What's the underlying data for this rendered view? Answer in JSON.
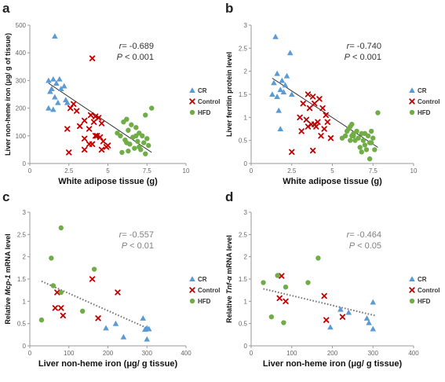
{
  "colors": {
    "CR": "#5b9bd5",
    "Control": "#c00000",
    "HFD": "#70ad47",
    "trend": "#222222",
    "trend_dotted": "#777777"
  },
  "chart_data": [
    {
      "type": "scatter",
      "letter": "a",
      "xlabel": "White adipose tissue (g)",
      "ylabel": "Liver non-heme iron (μg/ g of tissue)",
      "xlim": [
        0,
        10
      ],
      "ylim": [
        0,
        500
      ],
      "xticks": [
        "0",
        "2.5",
        "5",
        "7.5",
        "10"
      ],
      "yticks": [
        "0",
        "100",
        "200",
        "300",
        "400",
        "500"
      ],
      "stats": {
        "r": "-0.689",
        "p": "< 0.001"
      },
      "trend": {
        "x": [
          1.2,
          7.8
        ],
        "y": [
          290,
          40
        ],
        "style": "solid"
      },
      "series": [
        {
          "name": "CR",
          "marker": "triangle",
          "x": [
            1.6,
            1.2,
            1.4,
            1.5,
            1.9,
            2.0,
            1.7,
            2.2,
            1.3,
            1.6,
            2.3,
            1.2,
            1.8,
            2.4,
            1.5
          ],
          "y": [
            460,
            300,
            270,
            305,
            305,
            270,
            290,
            280,
            260,
            240,
            230,
            200,
            220,
            220,
            195
          ]
        },
        {
          "name": "Control",
          "marker": "x",
          "x": [
            4.0,
            2.8,
            3.0,
            3.5,
            2.6,
            3.9,
            4.2,
            4.4,
            4.1,
            3.8,
            4.6,
            2.4,
            3.2,
            4.3,
            5.0,
            3.5,
            4.5,
            3.8,
            4.7,
            4.9,
            4.0,
            4.6,
            2.5,
            3.5,
            4.2
          ],
          "y": [
            380,
            215,
            190,
            155,
            200,
            175,
            170,
            165,
            150,
            125,
            145,
            125,
            135,
            100,
            65,
            90,
            95,
            70,
            80,
            60,
            70,
            50,
            40,
            50,
            100
          ]
        },
        {
          "name": "HFD",
          "marker": "circle",
          "x": [
            7.8,
            6.2,
            7.4,
            6.0,
            6.5,
            6.8,
            7.0,
            6.3,
            7.2,
            6.6,
            7.5,
            5.8,
            6.1,
            6.9,
            7.3,
            6.4,
            7.0,
            5.6,
            6.2,
            7.6,
            6.7,
            7.1,
            5.9,
            6.3,
            7.4,
            6.8
          ],
          "y": [
            200,
            160,
            175,
            150,
            140,
            130,
            110,
            120,
            100,
            95,
            90,
            100,
            85,
            80,
            75,
            70,
            60,
            110,
            75,
            65,
            55,
            50,
            40,
            45,
            35,
            100
          ]
        }
      ]
    },
    {
      "type": "scatter",
      "letter": "b",
      "xlabel": "White adipose tissue (g)",
      "ylabel": "Liver ferritin protein level",
      "xlim": [
        0,
        10
      ],
      "ylim": [
        0,
        3
      ],
      "xticks": [
        "0",
        "2.5",
        "5",
        "7.5",
        "10"
      ],
      "yticks": [
        "0",
        "0.5",
        "1",
        "1.5",
        "2",
        "2.5",
        "3"
      ],
      "stats": {
        "r": "-0.740",
        "p": "< 0.001"
      },
      "trend": {
        "x": [
          1.3,
          7.8
        ],
        "y": [
          1.85,
          0.35
        ],
        "style": "solid"
      },
      "series": [
        {
          "name": "CR",
          "marker": "triangle",
          "x": [
            1.5,
            2.4,
            1.6,
            2.2,
            1.9,
            1.4,
            2.1,
            1.8,
            2.0,
            1.3,
            2.5,
            1.6,
            1.7,
            1.8
          ],
          "y": [
            2.75,
            2.4,
            1.95,
            1.9,
            1.8,
            1.75,
            1.7,
            1.6,
            1.55,
            1.5,
            1.5,
            1.45,
            1.15,
            0.75
          ]
        },
        {
          "name": "Control",
          "marker": "x",
          "x": [
            3.5,
            3.8,
            4.2,
            3.2,
            3.9,
            3.6,
            4.4,
            4.6,
            3.0,
            3.4,
            4.1,
            4.7,
            3.7,
            3.9,
            4.0,
            4.5,
            3.1,
            4.9,
            2.5,
            3.8,
            4.3,
            3.5
          ],
          "y": [
            1.5,
            1.45,
            1.4,
            1.3,
            1.3,
            1.2,
            1.2,
            1.05,
            1.0,
            0.95,
            0.9,
            0.9,
            0.85,
            0.85,
            0.8,
            0.75,
            0.7,
            0.55,
            0.25,
            0.28,
            0.6,
            0.8
          ]
        },
        {
          "name": "HFD",
          "marker": "circle",
          "x": [
            7.8,
            6.2,
            7.4,
            6.0,
            6.5,
            6.8,
            7.0,
            6.3,
            7.2,
            6.6,
            7.5,
            5.8,
            6.1,
            6.9,
            7.3,
            6.4,
            7.0,
            5.6,
            6.2,
            7.6,
            6.7,
            7.1,
            5.9,
            6.3,
            7.4,
            6.8,
            7.3,
            6.1
          ],
          "y": [
            1.1,
            0.85,
            0.7,
            0.75,
            0.7,
            0.65,
            0.65,
            0.6,
            0.6,
            0.55,
            0.55,
            0.6,
            0.5,
            0.5,
            0.45,
            0.5,
            0.4,
            0.55,
            0.6,
            0.3,
            0.35,
            0.3,
            0.7,
            0.65,
            0.45,
            0.25,
            0.1,
            0.8
          ]
        }
      ]
    },
    {
      "type": "scatter",
      "letter": "c",
      "xlabel": "Liver non-heme iron (μg/ g tissue)",
      "ylabel_pre": "Relative ",
      "ylabel_gene": "Mcp-1",
      "ylabel_post": " mRNA level",
      "xlim": [
        0,
        400
      ],
      "ylim": [
        0,
        3
      ],
      "xticks": [
        "0",
        "100",
        "200",
        "300",
        "400"
      ],
      "yticks": [
        "0",
        "0.5",
        "1",
        "1.5",
        "2",
        "2.5",
        "3"
      ],
      "stats": {
        "r": "-0.557",
        "p": "< 0.01"
      },
      "trend": {
        "x": [
          30,
          300
        ],
        "y": [
          1.45,
          0.4
        ],
        "style": "dotted"
      },
      "series": [
        {
          "name": "CR",
          "marker": "triangle",
          "x": [
            290,
            300,
            295,
            220,
            195,
            240,
            305,
            300
          ],
          "y": [
            0.62,
            0.4,
            0.37,
            0.5,
            0.4,
            0.2,
            0.38,
            0.15
          ]
        },
        {
          "name": "Control",
          "marker": "x",
          "x": [
            160,
            225,
            70,
            80,
            65,
            175,
            85
          ],
          "y": [
            1.5,
            1.2,
            1.2,
            0.85,
            0.85,
            0.62,
            0.68
          ]
        },
        {
          "name": "HFD",
          "marker": "circle",
          "x": [
            80,
            55,
            165,
            80,
            135,
            30,
            60
          ],
          "y": [
            2.65,
            1.97,
            1.72,
            1.2,
            0.78,
            0.58,
            1.35
          ]
        }
      ]
    },
    {
      "type": "scatter",
      "letter": "d",
      "xlabel": "Liver non-heme iron (μg/ g tissue)",
      "ylabel_pre": "Relative ",
      "ylabel_gene": "Tnf-α",
      "ylabel_post": " mRNA level",
      "xlim": [
        0,
        400
      ],
      "ylim": [
        0,
        3
      ],
      "xticks": [
        "0",
        "100",
        "200",
        "300",
        "400"
      ],
      "yticks": [
        "0",
        "0.5",
        "1",
        "1.5",
        "2",
        "2.5",
        "3"
      ],
      "stats": {
        "r": "-0.464",
        "p": "< 0.05"
      },
      "trend": {
        "x": [
          30,
          305
        ],
        "y": [
          1.28,
          0.68
        ],
        "style": "dotted"
      },
      "series": [
        {
          "name": "CR",
          "marker": "triangle",
          "x": [
            300,
            240,
            220,
            195,
            285,
            290,
            300
          ],
          "y": [
            0.98,
            0.75,
            0.82,
            0.42,
            0.62,
            0.52,
            0.38
          ]
        },
        {
          "name": "Control",
          "marker": "x",
          "x": [
            75,
            70,
            85,
            180,
            225,
            185
          ],
          "y": [
            1.57,
            1.07,
            1.0,
            1.12,
            0.65,
            0.58
          ]
        },
        {
          "name": "HFD",
          "marker": "circle",
          "x": [
            165,
            65,
            30,
            140,
            85,
            50,
            80
          ],
          "y": [
            1.97,
            1.58,
            1.42,
            1.42,
            1.32,
            0.65,
            0.52
          ]
        }
      ]
    }
  ]
}
